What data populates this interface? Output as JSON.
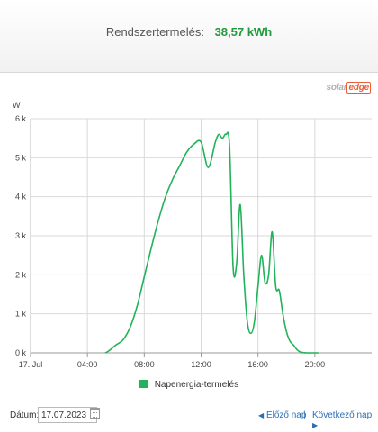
{
  "summary": {
    "label": "Rendszertermelés:",
    "value": "38,57 kWh"
  },
  "logo": {
    "part1": "solar",
    "part2": "edge"
  },
  "colors": {
    "series": "#21b25a",
    "value_text": "#1e9a3a",
    "link": "#2a6fb5",
    "grid": "#d9d9d9"
  },
  "chart_data": {
    "type": "line",
    "ylabel": "W",
    "y_ticks": [
      "0 k",
      "1 k",
      "2 k",
      "3 k",
      "4 k",
      "5 k",
      "6 k"
    ],
    "ylim": [
      0,
      6000
    ],
    "x_ticks": [
      "17. Jul",
      "04:00",
      "08:00",
      "12:00",
      "16:00",
      "20:00"
    ],
    "xlim_hours": [
      0,
      24
    ],
    "grid": true,
    "legend_position": "bottom-center",
    "series": [
      {
        "name": "Napenergia-termelés",
        "x": [
          5.25,
          5.5,
          6.0,
          6.5,
          7.0,
          7.5,
          8.0,
          8.5,
          9.0,
          9.5,
          10.0,
          10.5,
          11.0,
          11.5,
          12.0,
          12.5,
          13.0,
          13.25,
          13.5,
          13.75,
          14.0,
          14.25,
          14.5,
          14.75,
          15.0,
          15.25,
          15.5,
          15.75,
          16.0,
          16.25,
          16.5,
          16.75,
          17.0,
          17.25,
          17.5,
          17.75,
          18.0,
          18.25,
          18.5,
          18.75,
          19.0,
          19.25,
          19.5,
          19.75,
          20.0,
          20.25
        ],
        "values": [
          0,
          50,
          200,
          330,
          650,
          1200,
          1950,
          2700,
          3400,
          4000,
          4450,
          4800,
          5150,
          5350,
          5400,
          4750,
          5400,
          5600,
          5500,
          5600,
          5300,
          2200,
          2300,
          3800,
          2000,
          800,
          500,
          800,
          1700,
          2500,
          1800,
          2000,
          3100,
          1700,
          1600,
          1000,
          550,
          300,
          200,
          80,
          20,
          5,
          0,
          0,
          0,
          0
        ]
      }
    ]
  },
  "legend": {
    "item": "Napenergia-termelés"
  },
  "footer": {
    "date_label": "Dátum:",
    "date_value": "17.07.2023",
    "prev_label": "Előző nap",
    "separator": "|",
    "next_label": "Következő nap"
  }
}
